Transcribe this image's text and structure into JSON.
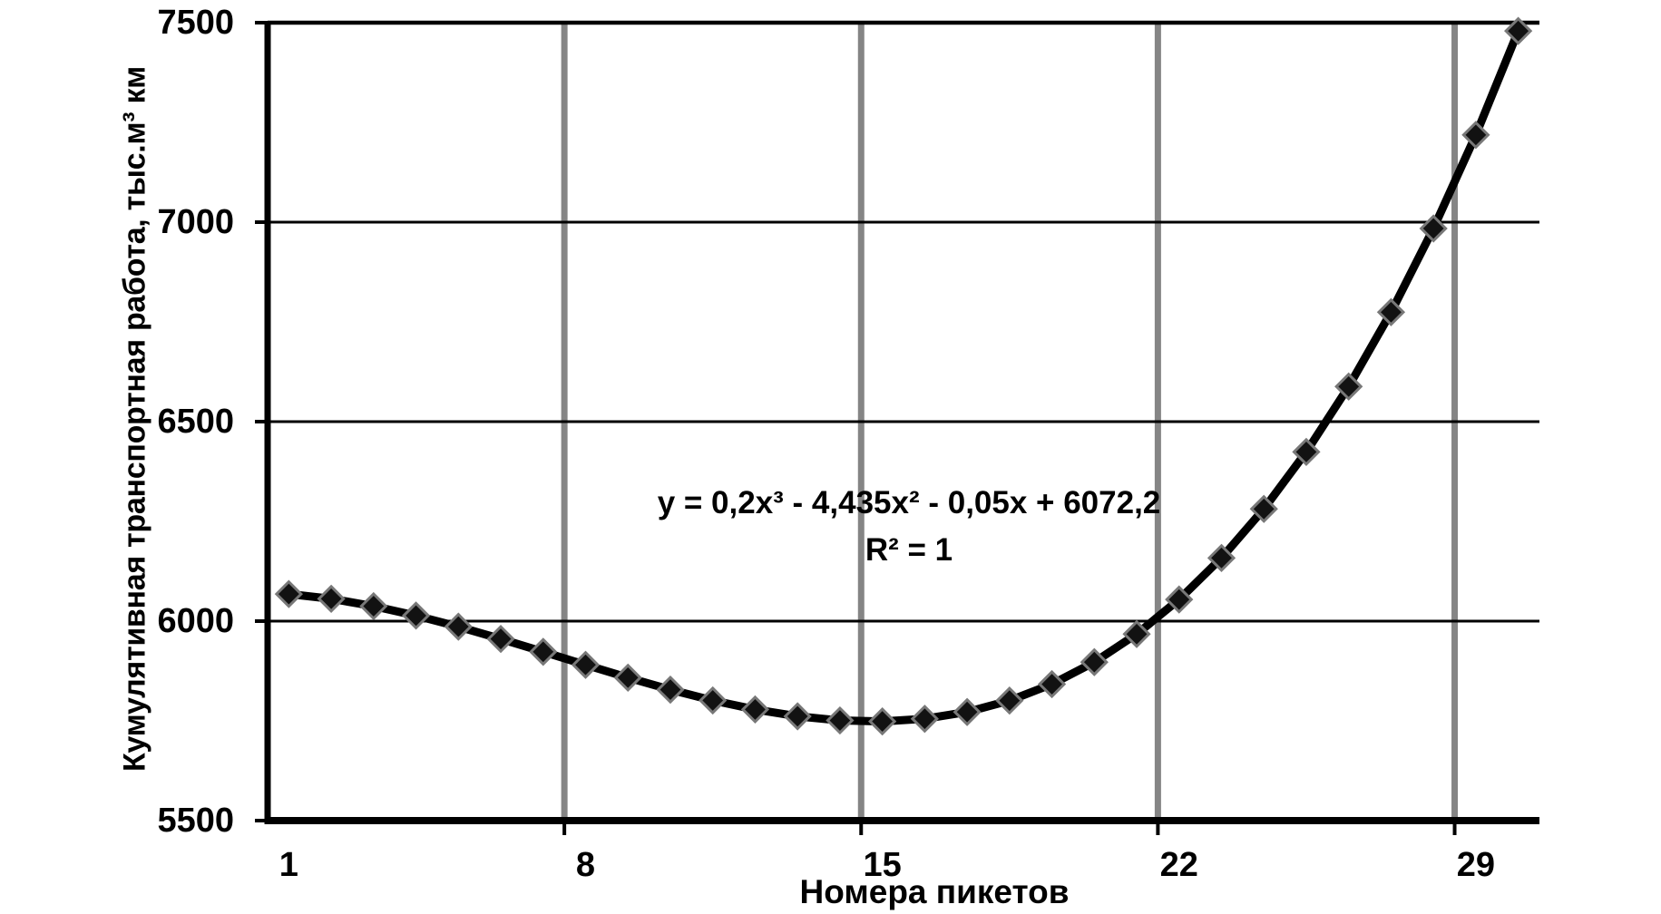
{
  "chart_data": {
    "type": "line",
    "title": "",
    "xlabel": "Номера пикетов",
    "ylabel": "Кумулятивная транспортная работа, тыс.м³ км",
    "x_axis_type": "category",
    "categories": [
      1,
      2,
      3,
      4,
      5,
      6,
      7,
      8,
      9,
      10,
      11,
      12,
      13,
      14,
      15,
      16,
      17,
      18,
      19,
      20,
      21,
      22,
      23,
      24,
      25,
      26,
      27,
      28,
      29,
      30
    ],
    "series": [
      {
        "values": [
          6067.9,
          6056.0,
          6037.5,
          6013.8,
          5986.1,
          5955.4,
          5923.1,
          5890.4,
          5858.3,
          5828.2,
          5801.2,
          5778.6,
          5761.4,
          5751.0,
          5748.6,
          5755.2,
          5772.2,
          5800.8,
          5842.0,
          5897.2,
          5967.5,
          6054.2,
          6158.3,
          6281.2,
          6424.1,
          6588.0,
          6774.3,
          6984.2,
          7218.7,
          7479.2
        ]
      }
    ],
    "ylim": [
      5500,
      7500
    ],
    "y_ticks": [
      5500,
      6000,
      6500,
      7000,
      7500
    ],
    "y_gridline_values": [
      6000,
      6500,
      7000,
      7500
    ],
    "x_tick_labels": [
      "1",
      "8",
      "15",
      "22",
      "29"
    ],
    "x_tick_categories": [
      1,
      8,
      15,
      22,
      29
    ],
    "x_gridline_boundaries": [
      7,
      14,
      21,
      28
    ],
    "legend": "none",
    "grid": {
      "vertical": true,
      "horizontal": true
    },
    "marker": "diamond",
    "annotation": {
      "equation": "y = 0,2x³ - 4,435x² - 0,05x + 6072,2",
      "r_squared": "R² = 1"
    },
    "colors": {
      "line": "#000000",
      "marker_fill": "#121212",
      "marker_stroke": "#787878",
      "vertical_grid": "#858585",
      "horizontal_grid": "#000000",
      "axis": "#000000",
      "text": "#000000",
      "background": "#ffffff"
    }
  }
}
